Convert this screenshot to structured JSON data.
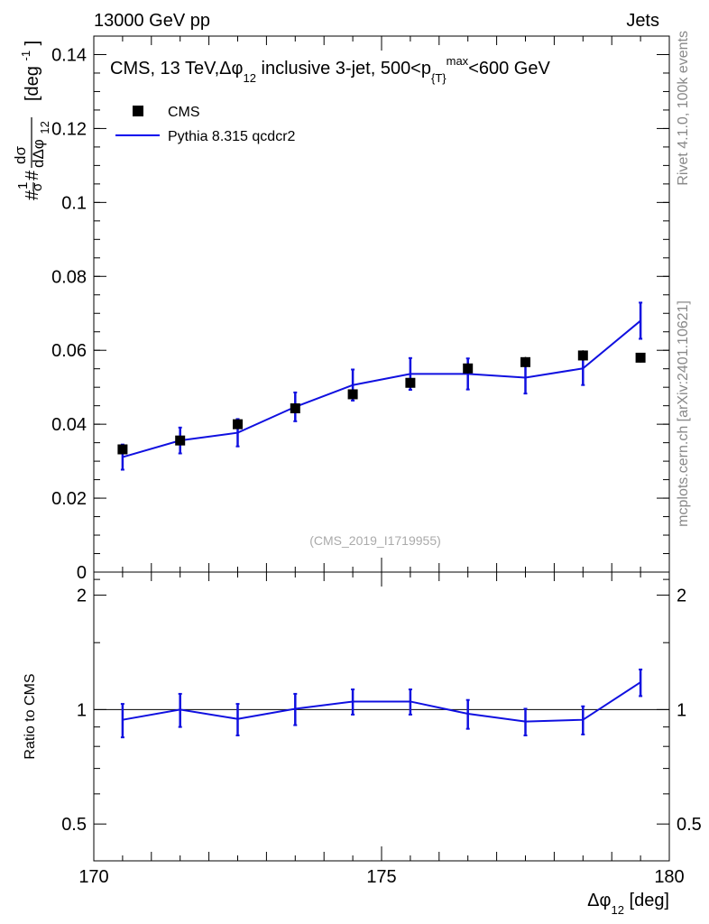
{
  "header": {
    "left": "13000 GeV pp",
    "right": "Jets"
  },
  "side_labels": {
    "rivet": "Rivet 4.1.0,  100k events",
    "mcplots": "mcplots.cern.ch [arXiv:2401.10621]"
  },
  "chart_data": [
    {
      "type": "scatter",
      "title": "CMS, 13 TeV,Δφ",
      "title_sub": "12",
      "title_rest": " inclusive 3-jet, 500<p",
      "title_sub2": "{T}",
      "title_sup": "max",
      "title_end": "<600 GeV",
      "ylabel": "#¹⁄σ dσ/dΔφ₁₂ [deg⁻¹]",
      "ylabel_parts": {
        "frac1_num": "1",
        "frac1_den": "σ",
        "hash": "#",
        "frac2_num": "dσ",
        "frac2_den": "dΔφ",
        "den_sub": "12",
        "unit": "[deg",
        "unit_sup": "-1",
        "unit_end": "]"
      },
      "xlim": [
        170,
        180
      ],
      "ylim": [
        0,
        0.145
      ],
      "yticks": [
        0,
        0.02,
        0.04,
        0.06,
        0.08,
        0.1,
        0.12,
        0.14
      ],
      "ytick_labels": [
        "0",
        "0.02",
        "0.04",
        "0.06",
        "0.08",
        "0.1",
        "0.12",
        "0.14"
      ],
      "legend": {
        "data_label": "CMS",
        "mc_label": "Pythia 8.315 qcdcr2"
      },
      "analysis_id": "(CMS_2019_I1719955)",
      "series": [
        {
          "name": "CMS",
          "x": [
            170.5,
            171.5,
            172.5,
            173.5,
            174.5,
            175.5,
            176.5,
            177.5,
            178.5,
            179.5
          ],
          "y": [
            0.0332,
            0.0356,
            0.04,
            0.0443,
            0.0481,
            0.0512,
            0.0551,
            0.0568,
            0.0586,
            0.058
          ],
          "yerr": [
            0.0012,
            0.0012,
            0.0012,
            0.0013,
            0.0013,
            0.0013,
            0.0014,
            0.0014,
            0.0014,
            0.0013
          ]
        },
        {
          "name": "Pythia 8.315 qcdcr2",
          "x": [
            170.5,
            171.5,
            172.5,
            173.5,
            174.5,
            175.5,
            176.5,
            177.5,
            178.5,
            179.5
          ],
          "y": [
            0.0311,
            0.0356,
            0.0377,
            0.0447,
            0.0506,
            0.0536,
            0.0536,
            0.0526,
            0.0551,
            0.068
          ],
          "yerr": [
            0.0034,
            0.0035,
            0.0037,
            0.0039,
            0.0042,
            0.0043,
            0.0042,
            0.0043,
            0.0045,
            0.0049
          ]
        }
      ]
    },
    {
      "type": "line",
      "ylabel": "Ratio to CMS",
      "xlabel": "Δφ",
      "xlabel_sub": "12",
      "xlabel_unit": " [deg]",
      "xlim": [
        170,
        180
      ],
      "ylim": [
        0.4,
        2.3
      ],
      "yscale": "log",
      "yticks": [
        0.5,
        1,
        2
      ],
      "ytick_labels": [
        "0.5",
        "1",
        "2"
      ],
      "xticks": [
        170,
        175,
        180
      ],
      "xtick_labels": [
        "170",
        "175",
        "180"
      ],
      "reference": 1,
      "series": [
        {
          "name": "Pythia 8.315 qcdcr2",
          "x": [
            170.5,
            171.5,
            172.5,
            173.5,
            174.5,
            175.5,
            176.5,
            177.5,
            178.5,
            179.5
          ],
          "y": [
            0.94,
            1.0,
            0.945,
            1.005,
            1.05,
            1.05,
            0.975,
            0.93,
            0.94,
            1.18
          ],
          "yerr": [
            0.095,
            0.1,
            0.09,
            0.095,
            0.08,
            0.08,
            0.085,
            0.075,
            0.08,
            0.095
          ]
        }
      ]
    }
  ]
}
